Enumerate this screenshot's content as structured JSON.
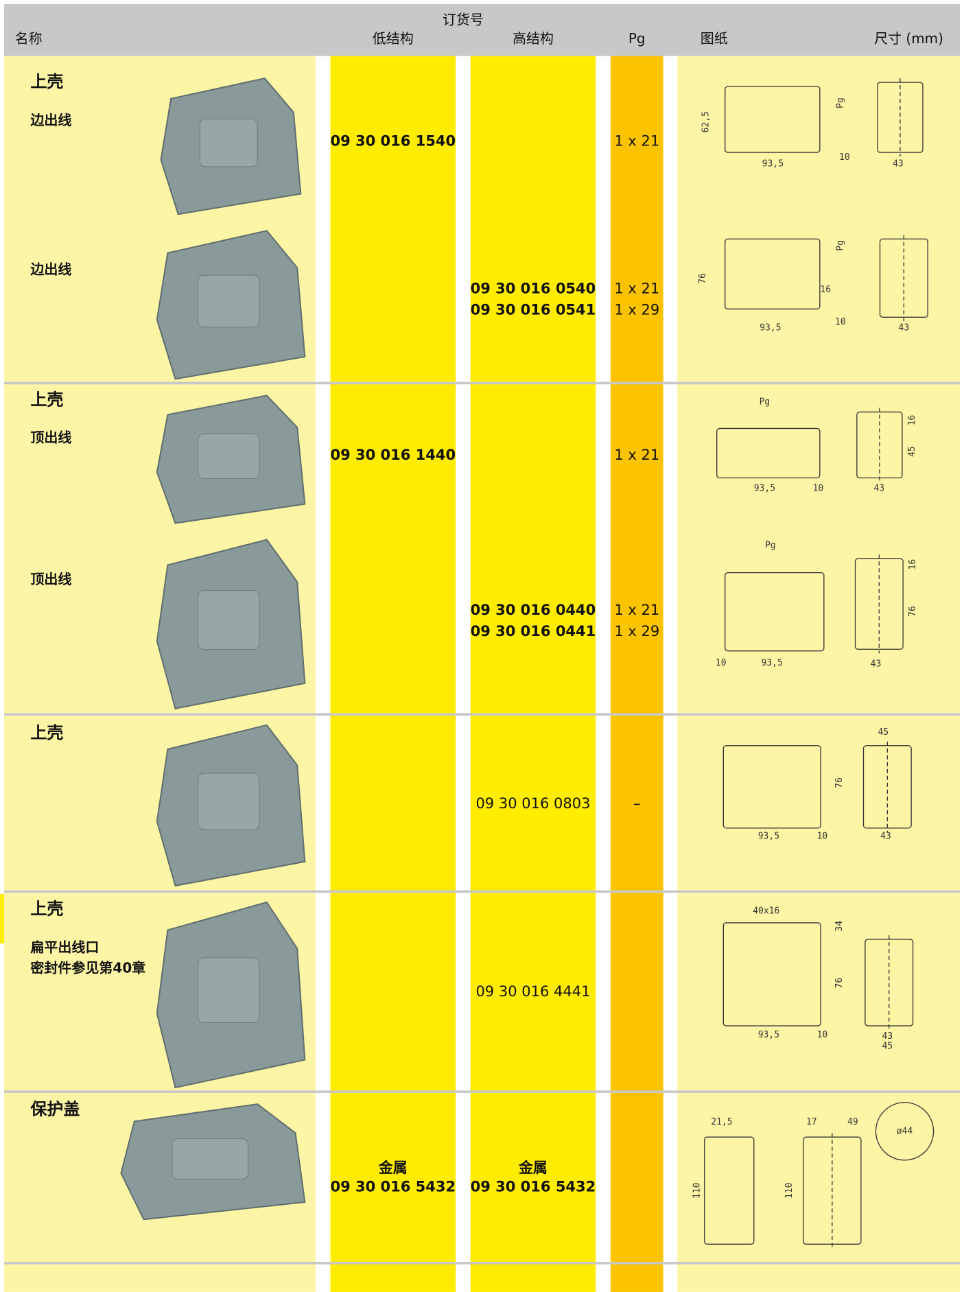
{
  "header": {
    "order_no": "订货号",
    "name": "名称",
    "low": "低结构",
    "high": "高结构",
    "pg": "Pg",
    "drawing": "图纸",
    "dims": "尺寸 (mm)"
  },
  "entries": [
    {
      "title": "上壳",
      "sub": [
        "边出线"
      ],
      "low": [
        "09 30 016 1540"
      ],
      "high": [],
      "pg": [
        "1 x 21"
      ],
      "dims": [
        "62,5",
        "Pg",
        "93,5",
        "10",
        "43"
      ]
    },
    {
      "title": null,
      "sub": [
        "边出线"
      ],
      "low": [],
      "high": [
        "09 30 016 0540",
        "09 30 016 0541"
      ],
      "pg": [
        "1 x 21",
        "1 x 29"
      ],
      "dims": [
        "76",
        "Pg",
        "16",
        "93,5",
        "10",
        "43"
      ]
    },
    {
      "title": "上壳",
      "sub": [
        "顶出线"
      ],
      "low": [
        "09 30 016 1440"
      ],
      "high": [],
      "pg": [
        "1 x 21"
      ],
      "dims": [
        "Pg",
        "16",
        "45",
        "93,5",
        "10",
        "43"
      ]
    },
    {
      "title": null,
      "sub": [
        "顶出线"
      ],
      "low": [],
      "high": [
        "09 30 016 0440",
        "09 30 016 0441"
      ],
      "pg": [
        "1 x 21",
        "1 x 29"
      ],
      "dims": [
        "Pg",
        "16",
        "76",
        "10",
        "93,5",
        "43"
      ]
    },
    {
      "title": "上壳",
      "sub": [],
      "low": [],
      "high": [
        "09 30 016 0803"
      ],
      "pg": [
        "–"
      ],
      "dims": [
        "45",
        "76",
        "93,5",
        "10",
        "43"
      ]
    },
    {
      "title": "上壳",
      "sub": [
        "扁平出线口",
        "密封件参见第40章"
      ],
      "low": [],
      "high": [
        "09 30 016 4441"
      ],
      "pg": [],
      "dims": [
        "40x16",
        "34",
        "76",
        "93,5",
        "10",
        "43",
        "45"
      ]
    },
    {
      "title": "保护盖",
      "sub": [],
      "low": [
        "金属",
        "09 30 016 5432"
      ],
      "high": [
        "金属",
        "09 30 016 5432"
      ],
      "pg": [],
      "dims": [
        "21,5",
        "110",
        "17",
        "49",
        "110",
        "ø44"
      ]
    }
  ]
}
